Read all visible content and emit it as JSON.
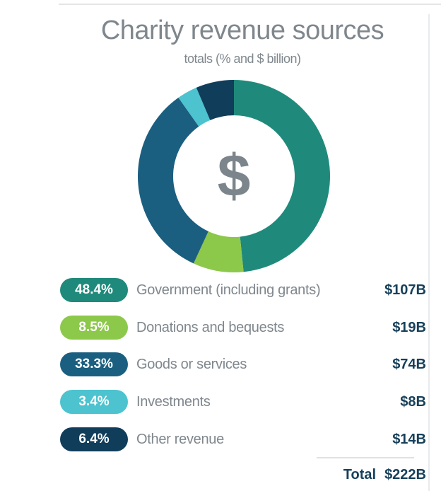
{
  "chart_data": {
    "type": "pie",
    "variant": "donut",
    "title": "Charity revenue sources",
    "subtitle": "totals (% and $ billion)",
    "center_icon": "dollar-sign-icon",
    "legend_placement": "bottom",
    "slices": [
      {
        "name": "Government (including grants)",
        "percent": 48.4,
        "percent_label": "48.4%",
        "value_label": "$107B",
        "value": 107,
        "color": "#1f8a7b"
      },
      {
        "name": "Donations and bequests",
        "percent": 8.5,
        "percent_label": "8.5%",
        "value_label": "$19B",
        "value": 19,
        "color": "#8cc84a"
      },
      {
        "name": "Goods or services",
        "percent": 33.3,
        "percent_label": "33.3%",
        "value_label": "$74B",
        "value": 74,
        "color": "#1b5f80"
      },
      {
        "name": "Investments",
        "percent": 3.4,
        "percent_label": "3.4%",
        "value_label": "$8B",
        "value": 8,
        "color": "#4cc3cf"
      },
      {
        "name": "Other revenue",
        "percent": 6.4,
        "percent_label": "6.4%",
        "value_label": "$14B",
        "value": 14,
        "color": "#103d5a"
      }
    ],
    "total_label": "Total",
    "total_value": "$222B"
  }
}
